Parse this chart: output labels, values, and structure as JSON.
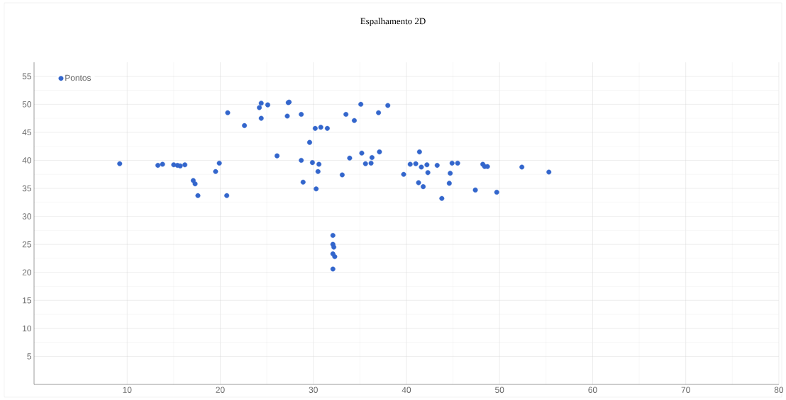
{
  "chart_data": {
    "type": "scatter",
    "title": "Espalhamento 2D",
    "series": [
      {
        "name": "Pontos",
        "color": "#3366cc",
        "x": [
          9.2,
          13.3,
          13.8,
          15.0,
          15.4,
          15.7,
          16.2,
          19.9,
          19.5,
          17.1,
          17.3,
          17.6,
          20.7,
          20.8,
          22.6,
          24.4,
          24.2,
          25.1,
          24.4,
          27.2,
          27.3,
          27.4,
          26.1,
          28.7,
          30.2,
          30.8,
          31.5,
          35.1,
          38.0,
          33.5,
          34.4,
          37.0,
          29.6,
          28.7,
          29.9,
          30.6,
          30.5,
          28.9,
          30.3,
          33.1,
          33.9,
          35.2,
          36.3,
          35.6,
          36.2,
          37.1,
          39.7,
          40.4,
          41.0,
          41.6,
          42.2,
          41.4,
          43.3,
          42.3,
          41.3,
          41.8,
          44.9,
          45.5,
          44.7,
          44.6,
          43.8,
          47.4,
          49.7,
          48.2,
          48.4,
          48.7,
          52.4,
          55.3,
          32.1,
          32.1,
          32.2,
          32.1,
          32.3,
          32.1
        ],
        "values": [
          39.4,
          39.1,
          39.3,
          39.2,
          39.1,
          39.0,
          39.2,
          39.5,
          38.0,
          36.4,
          35.8,
          33.7,
          33.7,
          48.5,
          46.2,
          50.2,
          49.4,
          49.9,
          47.5,
          47.9,
          50.3,
          50.4,
          40.8,
          48.2,
          45.7,
          45.9,
          45.7,
          50.0,
          49.8,
          48.2,
          47.1,
          48.5,
          43.2,
          40.0,
          39.6,
          39.3,
          38.0,
          36.1,
          34.9,
          37.4,
          40.4,
          41.3,
          40.5,
          39.4,
          39.5,
          41.5,
          37.5,
          39.3,
          39.4,
          38.8,
          39.2,
          41.5,
          39.1,
          37.8,
          36.0,
          35.3,
          39.5,
          39.5,
          37.7,
          35.9,
          33.2,
          34.7,
          34.3,
          39.3,
          38.9,
          38.9,
          38.8,
          37.9,
          26.6,
          25.0,
          24.5,
          23.3,
          22.8,
          20.6
        ]
      }
    ],
    "xlim": [
      0,
      80
    ],
    "xticks": [
      10,
      20,
      30,
      40,
      50,
      60,
      70,
      80
    ],
    "ylim": [
      0,
      57.5
    ],
    "yticks": [
      5,
      10,
      15,
      20,
      25,
      30,
      35,
      40,
      45,
      50,
      55
    ],
    "grid": true,
    "legend": "top left",
    "marker": "circle"
  }
}
